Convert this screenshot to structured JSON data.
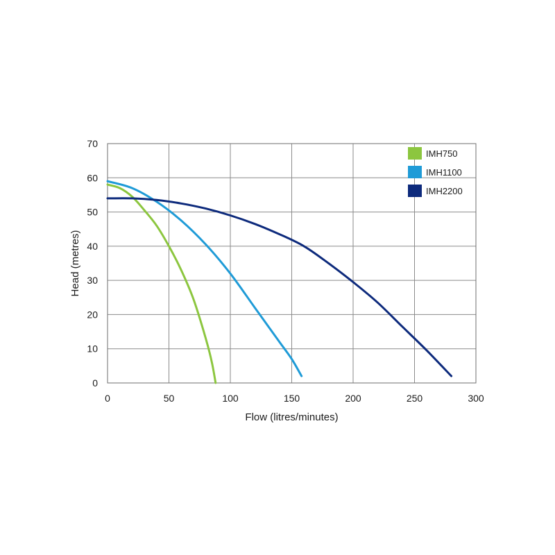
{
  "chart_data": {
    "type": "line",
    "title": "",
    "xlabel": "Flow (litres/minutes)",
    "ylabel": "Head (metres)",
    "xlim": [
      0,
      300
    ],
    "ylim": [
      0,
      70
    ],
    "xticks": [
      0,
      50,
      100,
      150,
      200,
      250,
      300
    ],
    "yticks": [
      0,
      10,
      20,
      30,
      40,
      50,
      60,
      70
    ],
    "grid": true,
    "legend_position": "top-right",
    "series": [
      {
        "name": "IMH750",
        "color": "#8cc63f",
        "x": [
          0,
          10,
          20,
          30,
          40,
          50,
          60,
          70,
          80,
          85,
          88
        ],
        "y": [
          58,
          57,
          54.5,
          50.5,
          46,
          40,
          33,
          24.5,
          13,
          6,
          0
        ]
      },
      {
        "name": "IMH1100",
        "color": "#1f9bd7",
        "x": [
          0,
          20,
          40,
          60,
          80,
          100,
          120,
          140,
          150,
          158
        ],
        "y": [
          59,
          57,
          53,
          47.5,
          40.5,
          32,
          22,
          12,
          7,
          2
        ]
      },
      {
        "name": "IMH2200",
        "color": "#0d2a7c",
        "x": [
          0,
          20,
          40,
          60,
          80,
          100,
          120,
          140,
          160,
          180,
          200,
          220,
          240,
          260,
          280
        ],
        "y": [
          54,
          54,
          53.5,
          52.5,
          51,
          49,
          46.5,
          43.5,
          40,
          35,
          29.5,
          23.5,
          16.5,
          9.5,
          2
        ]
      }
    ]
  }
}
